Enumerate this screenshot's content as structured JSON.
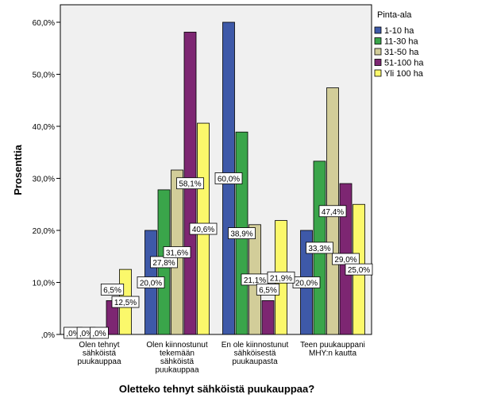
{
  "chart_data": {
    "type": "bar",
    "xlabel": "Oletteko tehnyt sähköistä puukauppaa?",
    "ylabel": "Prosenttia",
    "ylim": [
      0,
      65
    ],
    "yticks": [
      0,
      10,
      20,
      30,
      40,
      50,
      60
    ],
    "ytick_labels": [
      ",0%",
      "10,0%",
      "20,0%",
      "30,0%",
      "40,0%",
      "50,0%",
      "60,0%"
    ],
    "categories": [
      [
        "Olen tehnyt",
        "sähköistä",
        "puukauppaa"
      ],
      [
        "Olen kiinnostunut",
        "tekemään",
        "sähköistä",
        "puukauppaa"
      ],
      [
        "En ole kiinnostunut",
        "sähköisestä",
        "puukaupasta"
      ],
      [
        "Teen puukauppani",
        "MHY:n kautta"
      ]
    ],
    "legend_title": "Pinta-ala",
    "legend_position": "right",
    "series": [
      {
        "name": "1-10 ha",
        "color": "#3e59a8",
        "values": [
          0.0,
          20.0,
          60.0,
          20.0
        ],
        "labels": [
          ",0%",
          "20,0%",
          "60,0%",
          "20,0%"
        ]
      },
      {
        "name": "11-30 ha",
        "color": "#3aa54a",
        "values": [
          0.0,
          27.8,
          38.9,
          33.3
        ],
        "labels": [
          ",0%",
          "27,8%",
          "38,9%",
          "33,3%"
        ]
      },
      {
        "name": "31-50 ha",
        "color": "#d2cd99",
        "values": [
          0.0,
          31.6,
          21.1,
          47.4
        ],
        "labels": [
          ",0%",
          "31,6%",
          "21,1%",
          "47,4%"
        ]
      },
      {
        "name": "51-100 ha",
        "color": "#7d2672",
        "values": [
          6.5,
          58.1,
          6.5,
          29.0
        ],
        "labels": [
          "6,5%",
          "58,1%",
          "6,5%",
          "29,0%"
        ]
      },
      {
        "name": "Yli 100 ha",
        "color": "#fbf86b",
        "values": [
          12.5,
          40.6,
          21.9,
          25.0
        ],
        "labels": [
          "12,5%",
          "40,6%",
          "21,9%",
          "25,0%"
        ]
      }
    ]
  }
}
